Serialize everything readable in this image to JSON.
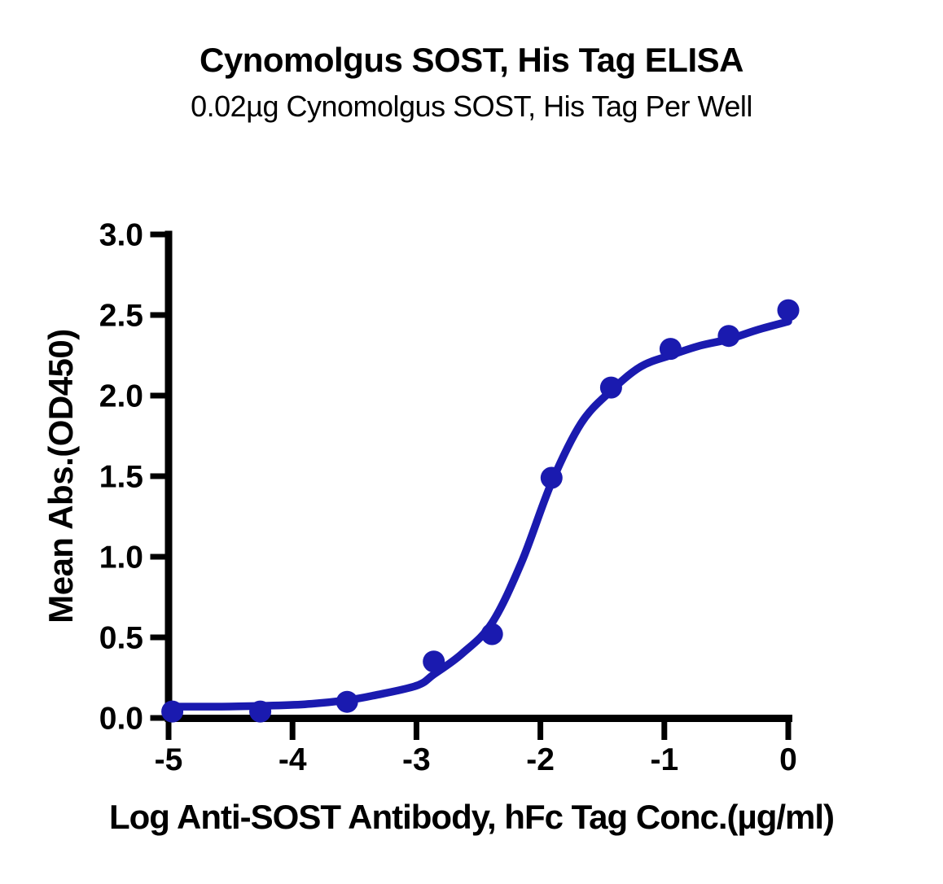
{
  "figure": {
    "background": "#ffffff"
  },
  "chart": {
    "title": "Cynomolgus SOST, His Tag ELISA",
    "subtitle": "0.02µg Cynomolgus SOST, His Tag Per Well",
    "x_axis_label": "Log Anti-SOST Antibody, hFc Tag Conc.(µg/ml)",
    "y_axis_label": "Mean Abs.(OD450)"
  },
  "chart_data": {
    "type": "scatter",
    "title": "Cynomolgus SOST, His Tag ELISA",
    "subtitle": "0.02µg Cynomolgus SOST, His Tag Per Well",
    "xlabel": "Log Anti-SOST Antibody, hFc Tag Conc.(µg/ml)",
    "ylabel": "Mean Abs.(OD450)",
    "xlim": [
      -5,
      0
    ],
    "ylim": [
      0,
      3
    ],
    "x_ticks": [
      "-5",
      "-4",
      "-3",
      "-2",
      "-1",
      "0"
    ],
    "y_ticks": [
      "0.0",
      "0.5",
      "1.0",
      "1.5",
      "2.0",
      "2.5",
      "3.0"
    ],
    "grid": false,
    "legend": null,
    "axis_color": "#000000",
    "series": [
      {
        "name": "Anti-SOST Antibody, hFc Tag",
        "marker": "circle",
        "color": "#1a1aaf",
        "x": [
          -4.97,
          -4.26,
          -3.56,
          -2.86,
          -2.39,
          -1.91,
          -1.43,
          -0.95,
          -0.48,
          0.0
        ],
        "y": [
          0.04,
          0.04,
          0.1,
          0.35,
          0.52,
          1.49,
          2.05,
          2.29,
          2.37,
          2.53
        ]
      }
    ],
    "fit_curve": {
      "model": "4PL sigmoidal dose-response",
      "color": "#1a1aaf",
      "points": {
        "x": [
          -5.0,
          -4.6,
          -4.26,
          -3.9,
          -3.56,
          -3.34,
          -3.0,
          -2.86,
          -2.63,
          -2.39,
          -2.15,
          -1.91,
          -1.67,
          -1.43,
          -1.19,
          -0.95,
          -0.71,
          -0.48,
          -0.24,
          0.0
        ],
        "y": [
          0.07,
          0.07,
          0.075,
          0.085,
          0.11,
          0.14,
          0.2,
          0.27,
          0.4,
          0.59,
          0.97,
          1.46,
          1.83,
          2.03,
          2.18,
          2.25,
          2.31,
          2.35,
          2.41,
          2.46
        ]
      }
    }
  }
}
